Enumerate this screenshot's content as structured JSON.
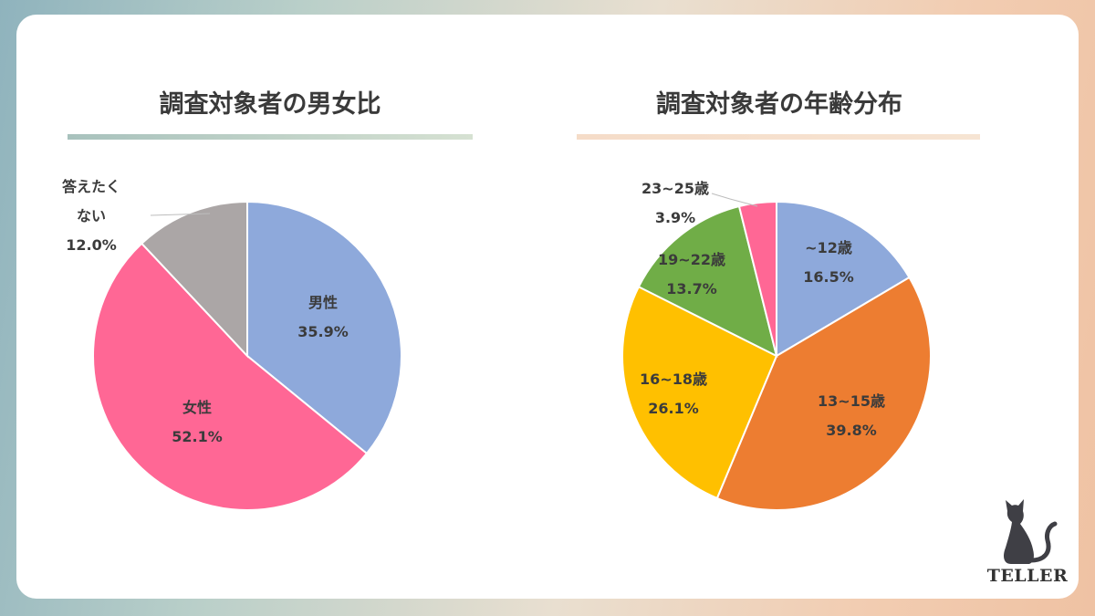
{
  "chart_data": [
    {
      "type": "pie",
      "title": "調査対象者の男女比",
      "slices": [
        {
          "label": "男性",
          "value": 35.9,
          "display": "35.9%",
          "color": "#8EA9DB"
        },
        {
          "label": "女性",
          "value": 52.1,
          "display": "52.1%",
          "color": "#FF6795"
        },
        {
          "label": "答えたくない",
          "label_lines": [
            "答えたく",
            "ない"
          ],
          "value": 12.0,
          "display": "12.0%",
          "color": "#ABA6A6"
        }
      ]
    },
    {
      "type": "pie",
      "title": "調査対象者の年齢分布",
      "slices": [
        {
          "label": "~12歳",
          "value": 16.5,
          "display": "16.5%",
          "color": "#8EA9DB"
        },
        {
          "label": "13~15歳",
          "value": 39.8,
          "display": "39.8%",
          "color": "#ED7D31"
        },
        {
          "label": "16~18歳",
          "value": 26.1,
          "display": "26.1%",
          "color": "#FFC000"
        },
        {
          "label": "19~22歳",
          "value": 13.7,
          "display": "13.7%",
          "color": "#70AD47"
        },
        {
          "label": "23~25歳",
          "value": 3.9,
          "display": "3.9%",
          "color": "#FF6795"
        }
      ]
    }
  ],
  "logo": {
    "text": "TELLER",
    "icon": "cat-icon"
  }
}
